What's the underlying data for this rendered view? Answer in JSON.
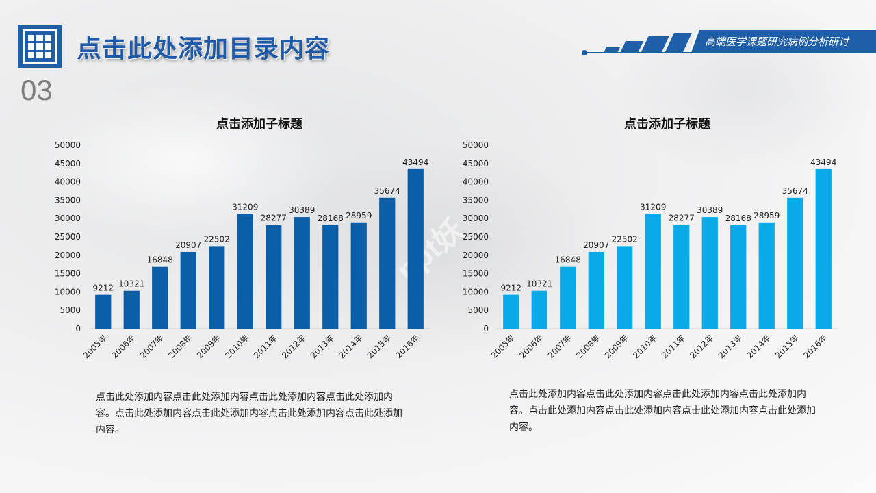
{
  "header": {
    "title": "点击此处添加目录内容",
    "section_number": "03",
    "banner_text": "高端医学课题研究病例分析研讨"
  },
  "watermark": "ppt妖",
  "colors": {
    "primary": "#1f5faa",
    "chart_left_bar": "#0b5ea8",
    "chart_right_bar": "#0aa9e8"
  },
  "chart_data": [
    {
      "type": "bar",
      "title": "点击添加子标题",
      "categories": [
        "2005年",
        "2006年",
        "2007年",
        "2008年",
        "2009年",
        "2010年",
        "2011年",
        "2012年",
        "2013年",
        "2014年",
        "2015年",
        "2016年"
      ],
      "values": [
        9212,
        10321,
        16848,
        20907,
        22502,
        31209,
        28277,
        30389,
        28168,
        28959,
        35674,
        43494
      ],
      "yticks": [
        0,
        5000,
        10000,
        15000,
        20000,
        25000,
        30000,
        35000,
        40000,
        45000,
        50000
      ],
      "ylim": [
        0,
        50000
      ],
      "xlabel": "",
      "ylabel": "",
      "color": "#0b5ea8"
    },
    {
      "type": "bar",
      "title": "点击添加子标题",
      "categories": [
        "2005年",
        "2006年",
        "2007年",
        "2008年",
        "2009年",
        "2010年",
        "2011年",
        "2012年",
        "2013年",
        "2014年",
        "2015年",
        "2016年"
      ],
      "values": [
        9212,
        10321,
        16848,
        20907,
        22502,
        31209,
        28277,
        30389,
        28168,
        28959,
        35674,
        43494
      ],
      "yticks": [
        0,
        5000,
        10000,
        15000,
        20000,
        25000,
        30000,
        35000,
        40000,
        45000,
        50000
      ],
      "ylim": [
        0,
        50000
      ],
      "xlabel": "",
      "ylabel": "",
      "color": "#0aa9e8"
    }
  ],
  "descriptions": [
    "点击此处添加内容点击此处添加内容点击此处添加内容点击此处添加内容。点击此处添加内容点击此处添加内容点击此处添加内容点击此处添加内容。",
    "点击此处添加内容点击此处添加内容点击此处添加内容点击此处添加内容。点击此处添加内容点击此处添加内容点击此处添加内容点击此处添加内容。"
  ]
}
